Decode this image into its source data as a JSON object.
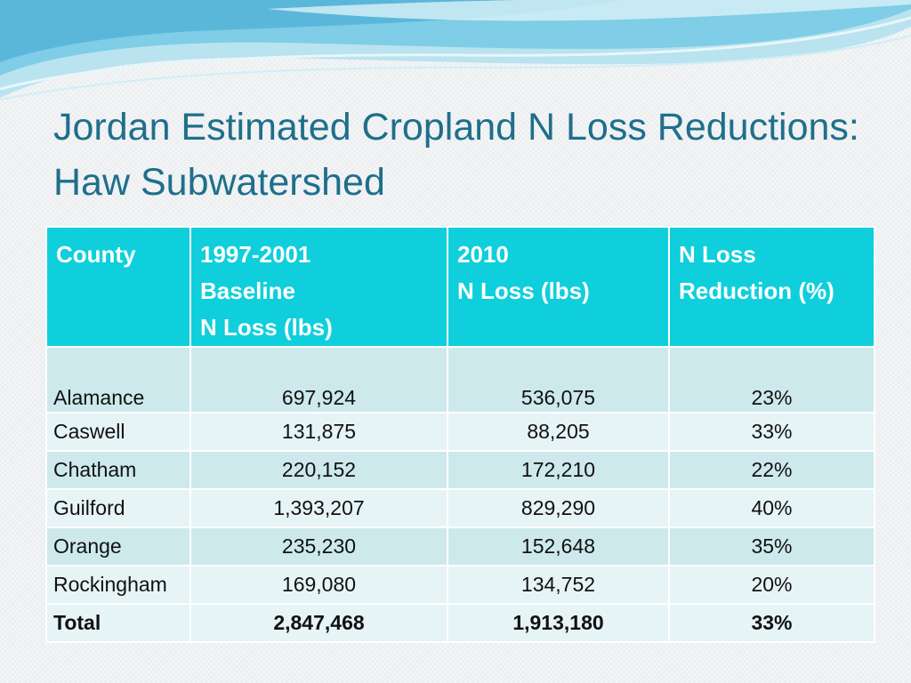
{
  "title": {
    "line1": "Jordan Estimated Cropland N Loss Reductions:",
    "line2": "Haw Subwatershed"
  },
  "table": {
    "headers": [
      [
        "County"
      ],
      [
        "1997-2001",
        "Baseline",
        "N Loss (lbs)"
      ],
      [
        "2010",
        "N Loss (lbs)"
      ],
      [
        "N Loss",
        "Reduction (%)"
      ]
    ],
    "rows": [
      [
        "Alamance",
        "697,924",
        "536,075",
        "23%"
      ],
      [
        "Caswell",
        "131,875",
        "88,205",
        "33%"
      ],
      [
        "Chatham",
        "220,152",
        "172,210",
        "22%"
      ],
      [
        "Guilford",
        "1,393,207",
        "829,290",
        "40%"
      ],
      [
        "Orange",
        "235,230",
        "152,648",
        "35%"
      ],
      [
        "Rockingham",
        "169,080",
        "134,752",
        "20%"
      ]
    ],
    "total": [
      "Total",
      "2,847,468",
      "1,913,180",
      "33%"
    ]
  },
  "colors": {
    "title": "#1f6f8b",
    "header_bg": "#0fcfdc",
    "row_dark": "#cde9ec",
    "row_light": "#e6f4f6"
  }
}
